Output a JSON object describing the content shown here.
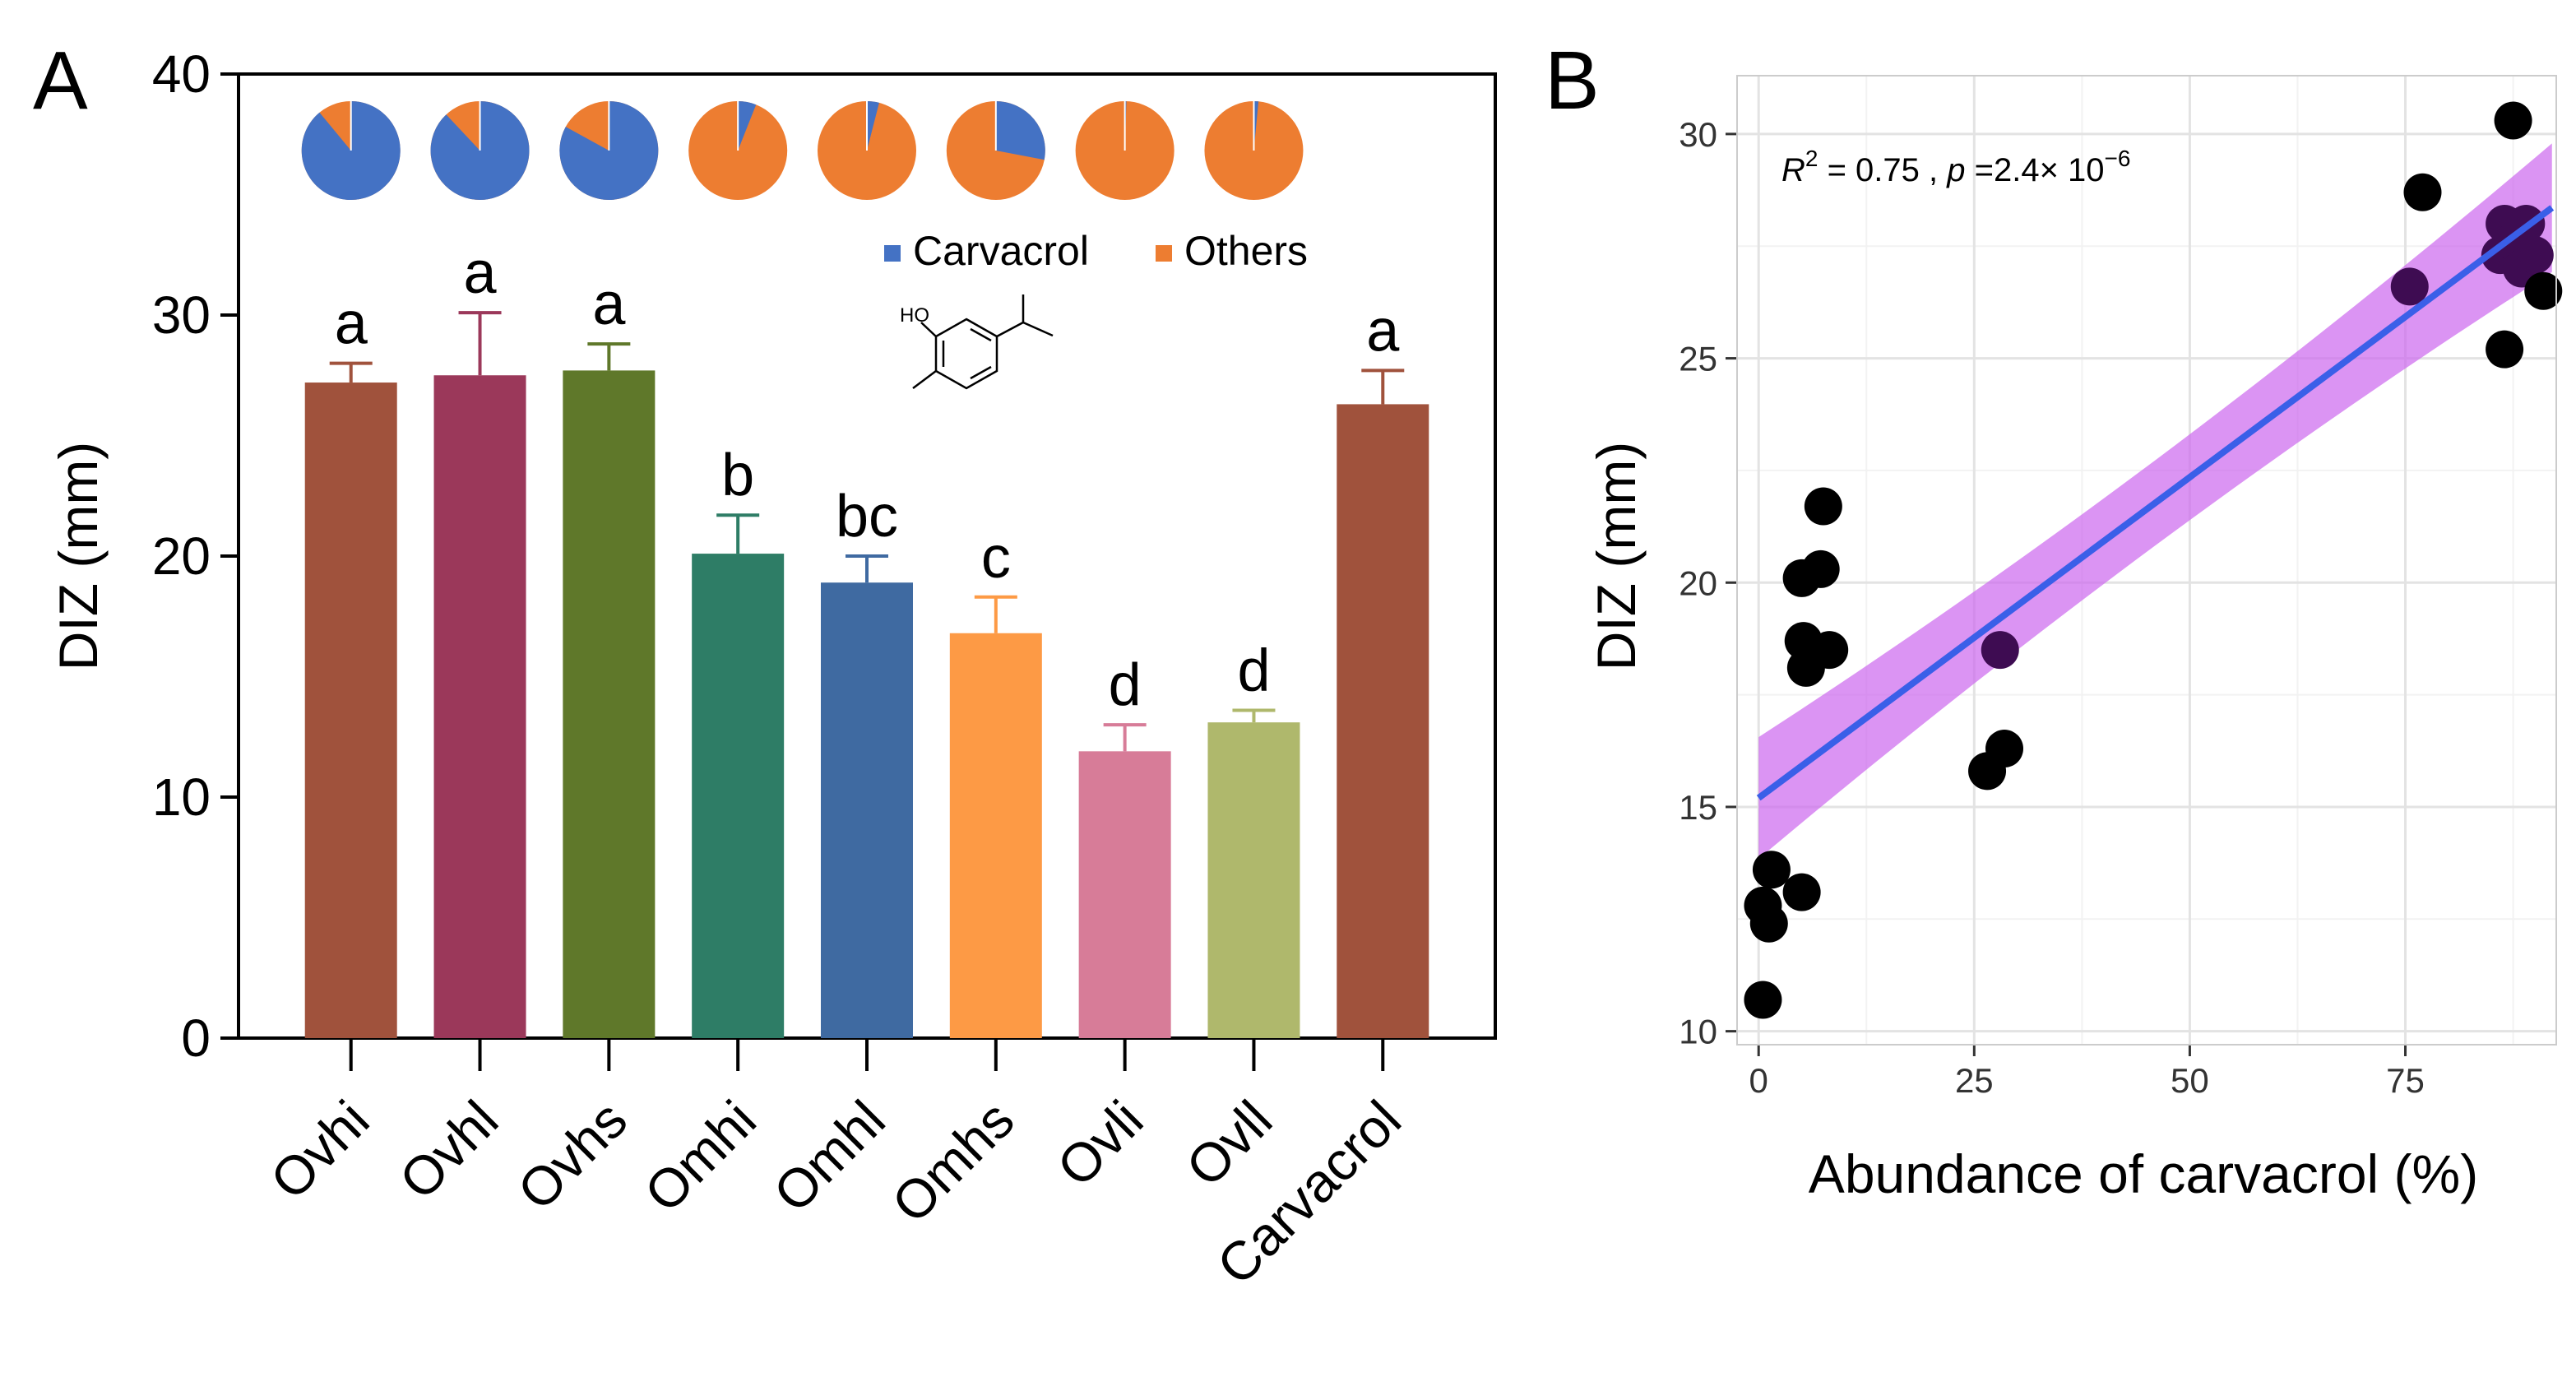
{
  "colors": {
    "carvacrol_pie": "#4472C4",
    "others_pie": "#ED7D31",
    "regression_line": "#3A5FE8",
    "confidence_band": "#CC66EE",
    "point_black": "#000000",
    "point_purple": "#3E0C52"
  },
  "chart_data": [
    {
      "panel": "A",
      "type": "bar",
      "ylabel": "DIZ (mm)",
      "ylim": [
        0,
        40
      ],
      "yticks": [
        "0",
        "10",
        "20",
        "30",
        "40"
      ],
      "categories": [
        "Ovhi",
        "Ovhl",
        "Ovhs",
        "Omhi",
        "Omhl",
        "Omhs",
        "Ovli",
        "Ovll",
        "Carvacrol"
      ],
      "values": [
        27.2,
        27.5,
        27.7,
        20.1,
        18.9,
        16.8,
        11.9,
        13.1,
        26.3
      ],
      "errors": [
        0.8,
        2.6,
        1.1,
        1.6,
        1.1,
        1.5,
        1.1,
        0.5,
        1.4
      ],
      "letters": [
        "a",
        "a",
        "a",
        "b",
        "bc",
        "c",
        "d",
        "d",
        "a"
      ],
      "bar_colors": [
        "#A0523C",
        "#9B385A",
        "#5F782A",
        "#2E7D66",
        "#3F6AA1",
        "#FD9A45",
        "#D77C98",
        "#AFB86C",
        "#A0523C"
      ],
      "pies": [
        {
          "label": "Ovhi",
          "carvacrol_pct": 89
        },
        {
          "label": "Ovhl",
          "carvacrol_pct": 88
        },
        {
          "label": "Ovhs",
          "carvacrol_pct": 83
        },
        {
          "label": "Omhi",
          "carvacrol_pct": 6
        },
        {
          "label": "Omhl",
          "carvacrol_pct": 4
        },
        {
          "label": "Omhs",
          "carvacrol_pct": 28
        },
        {
          "label": "Ovli",
          "carvacrol_pct": 0.5
        },
        {
          "label": "Ovll",
          "carvacrol_pct": 1.5
        }
      ],
      "legend": [
        "Carvacrol",
        "Others"
      ],
      "structure_label": "HO"
    },
    {
      "panel": "B",
      "type": "scatter",
      "xlabel": "Abundance of carvacrol (%)",
      "ylabel": "DIZ (mm)",
      "xlim": [
        -2.5,
        92.5
      ],
      "ylim": [
        9.7,
        31.3
      ],
      "xticks": [
        "0",
        "25",
        "50",
        "75"
      ],
      "yticks": [
        "10",
        "15",
        "20",
        "25",
        "30"
      ],
      "annotation": {
        "r2_symbol": "R",
        "r2_sup": "2",
        "r2_text": " = 0.75 , ",
        "p_symbol": "p",
        "p_text": " =2.4× 10",
        "p_exp": "−6"
      },
      "fit": {
        "intercept": 15.2,
        "slope": 0.143,
        "x_range": [
          0,
          92
        ]
      },
      "points": [
        {
          "x": 0.5,
          "y": 10.7,
          "group": "black"
        },
        {
          "x": 0.5,
          "y": 12.8,
          "group": "black"
        },
        {
          "x": 1.2,
          "y": 12.4,
          "group": "black"
        },
        {
          "x": 1.5,
          "y": 13.6,
          "group": "black"
        },
        {
          "x": 5.0,
          "y": 13.1,
          "group": "black"
        },
        {
          "x": 5.5,
          "y": 18.1,
          "group": "black"
        },
        {
          "x": 5.2,
          "y": 18.7,
          "group": "black"
        },
        {
          "x": 8.2,
          "y": 18.5,
          "group": "black"
        },
        {
          "x": 5.0,
          "y": 20.1,
          "group": "black"
        },
        {
          "x": 7.2,
          "y": 20.3,
          "group": "black"
        },
        {
          "x": 7.5,
          "y": 21.7,
          "group": "black"
        },
        {
          "x": 26.5,
          "y": 15.8,
          "group": "black"
        },
        {
          "x": 28.5,
          "y": 16.3,
          "group": "black"
        },
        {
          "x": 28.0,
          "y": 18.5,
          "group": "purple"
        },
        {
          "x": 75.5,
          "y": 26.6,
          "group": "purple"
        },
        {
          "x": 77.0,
          "y": 28.7,
          "group": "black"
        },
        {
          "x": 86.5,
          "y": 25.2,
          "group": "black"
        },
        {
          "x": 87.5,
          "y": 30.3,
          "group": "black"
        },
        {
          "x": 86.0,
          "y": 27.3,
          "group": "purple"
        },
        {
          "x": 86.5,
          "y": 28.0,
          "group": "purple"
        },
        {
          "x": 87.5,
          "y": 27.6,
          "group": "purple"
        },
        {
          "x": 88.5,
          "y": 27.0,
          "group": "purple"
        },
        {
          "x": 89.0,
          "y": 28.0,
          "group": "purple"
        },
        {
          "x": 90.0,
          "y": 27.3,
          "group": "purple"
        },
        {
          "x": 91.0,
          "y": 26.5,
          "group": "black"
        }
      ]
    }
  ]
}
